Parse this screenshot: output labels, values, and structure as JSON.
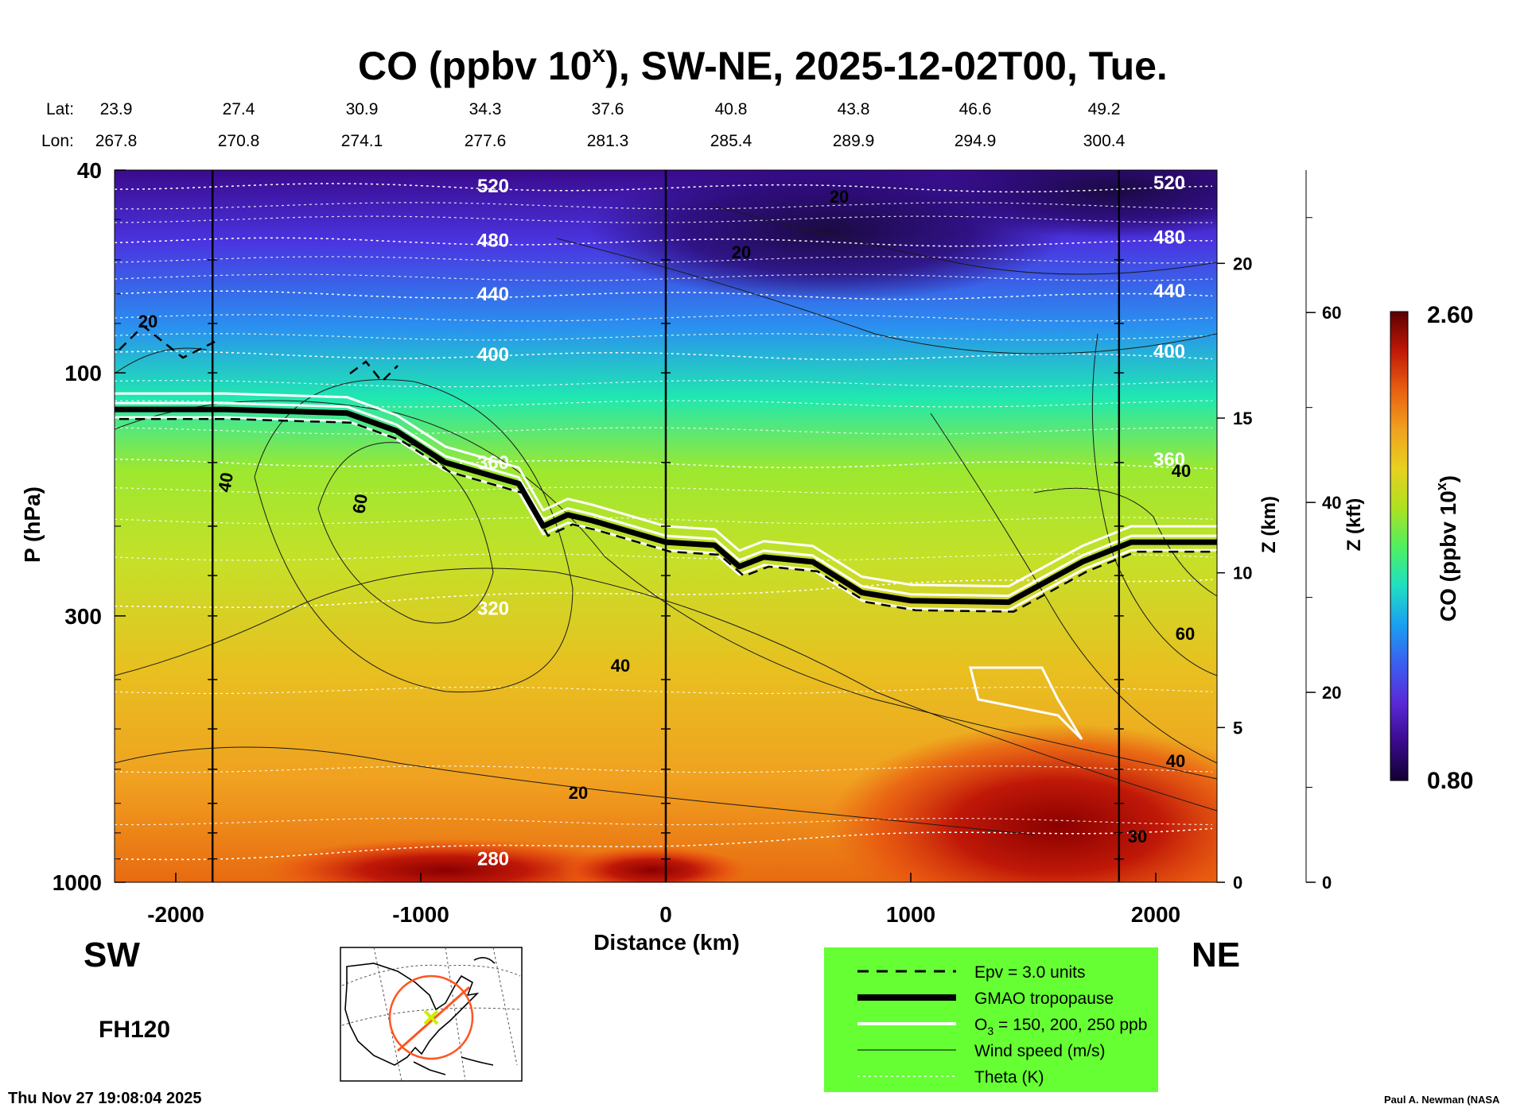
{
  "chart_data": {
    "type": "heatmap",
    "title_main": "CO (ppbv 10",
    "title_sup": "x",
    "title_rest": "), SW-NE, 2025-12-02T00, Tue.",
    "lat_label": "Lat:",
    "lon_label": "Lon:",
    "lat": [
      "23.9",
      "27.4",
      "30.9",
      "34.3",
      "37.6",
      "40.8",
      "43.8",
      "46.6",
      "49.2"
    ],
    "lon": [
      "267.8",
      "270.8",
      "274.1",
      "277.6",
      "281.3",
      "285.4",
      "289.9",
      "294.9",
      "300.4"
    ],
    "xlabel": "Distance (km)",
    "xlim": [
      -2250,
      2250
    ],
    "x_ticks": [
      -2000,
      -1000,
      0,
      1000,
      2000
    ],
    "ylabel": "P (hPa)",
    "ylim": [
      1000,
      40
    ],
    "y_scale": "log",
    "y_ticks": [
      40,
      100,
      300,
      1000
    ],
    "z_km_label": "Z (km)",
    "z_km_ticks": [
      0,
      5,
      10,
      15,
      20
    ],
    "z_kft_label": "Z (kft)",
    "z_kft_ticks": [
      0,
      20,
      40,
      60
    ],
    "colorbar_label": "CO (ppbv 10",
    "colorbar_sup": "x",
    "colorbar_close": ")",
    "colorbar_min": "0.80",
    "colorbar_max": "2.60",
    "colorbar_range": [
      0.8,
      2.6
    ],
    "colorbar_stops": [
      "#110033",
      "#3a0a8c",
      "#5a2ad8",
      "#3a5ff0",
      "#1aa0f0",
      "#20e0c0",
      "#50f060",
      "#b0e020",
      "#e8d020",
      "#f0a020",
      "#e86010",
      "#c01808",
      "#5a0000"
    ],
    "vertical_lines_km": [
      -1850,
      0,
      1850
    ],
    "theta_contours_K": [
      {
        "label": "520",
        "pressure_hpa": 43
      },
      {
        "label": "480",
        "pressure_hpa": 55
      },
      {
        "label": "440",
        "pressure_hpa": 70
      },
      {
        "label": "400",
        "pressure_hpa": 92
      },
      {
        "label": "360",
        "pressure_hpa": 150
      },
      {
        "label": "320",
        "pressure_hpa": 290
      },
      {
        "label": "280",
        "pressure_hpa": 900
      }
    ],
    "tropopause_hpa": {
      "x_km": [
        -2250,
        -1900,
        -1800,
        -1300,
        -1100,
        -900,
        -600,
        -500,
        -400,
        -300,
        0,
        200,
        300,
        400,
        600,
        800,
        1000,
        1400,
        1700,
        1900,
        2250
      ],
      "p_hpa": [
        118,
        118,
        118,
        120,
        130,
        150,
        165,
        200,
        190,
        195,
        215,
        218,
        240,
        230,
        235,
        270,
        280,
        282,
        235,
        215,
        215
      ]
    },
    "wind_labels": [
      "20",
      "20",
      "40",
      "60",
      "40",
      "20",
      "40",
      "60",
      "40"
    ],
    "co_labels": [
      "20",
      "30"
    ],
    "side_labels": {
      "left": "SW",
      "right": "NE"
    },
    "forecast_hour": "FH120",
    "legend": [
      {
        "label": "Epv = 3.0 units",
        "style": "dashed-black"
      },
      {
        "label": "GMAO tropopause",
        "style": "thick-black"
      },
      {
        "label_prefix": "O",
        "label_sub": "3",
        "label_suffix": " = 150, 200, 250 ppb",
        "style": "white"
      },
      {
        "label": "Wind speed (m/s)",
        "style": "thin-black"
      },
      {
        "label": "Theta (K)",
        "style": "dotted-white"
      }
    ],
    "timestamp": "Thu Nov 27 19:08:04 2025",
    "credit": "Paul A. Newman (NASA"
  },
  "colors": {
    "legend_bg": "#66ff33",
    "map_track": "#ff5522",
    "map_marker": "#ccee00"
  }
}
